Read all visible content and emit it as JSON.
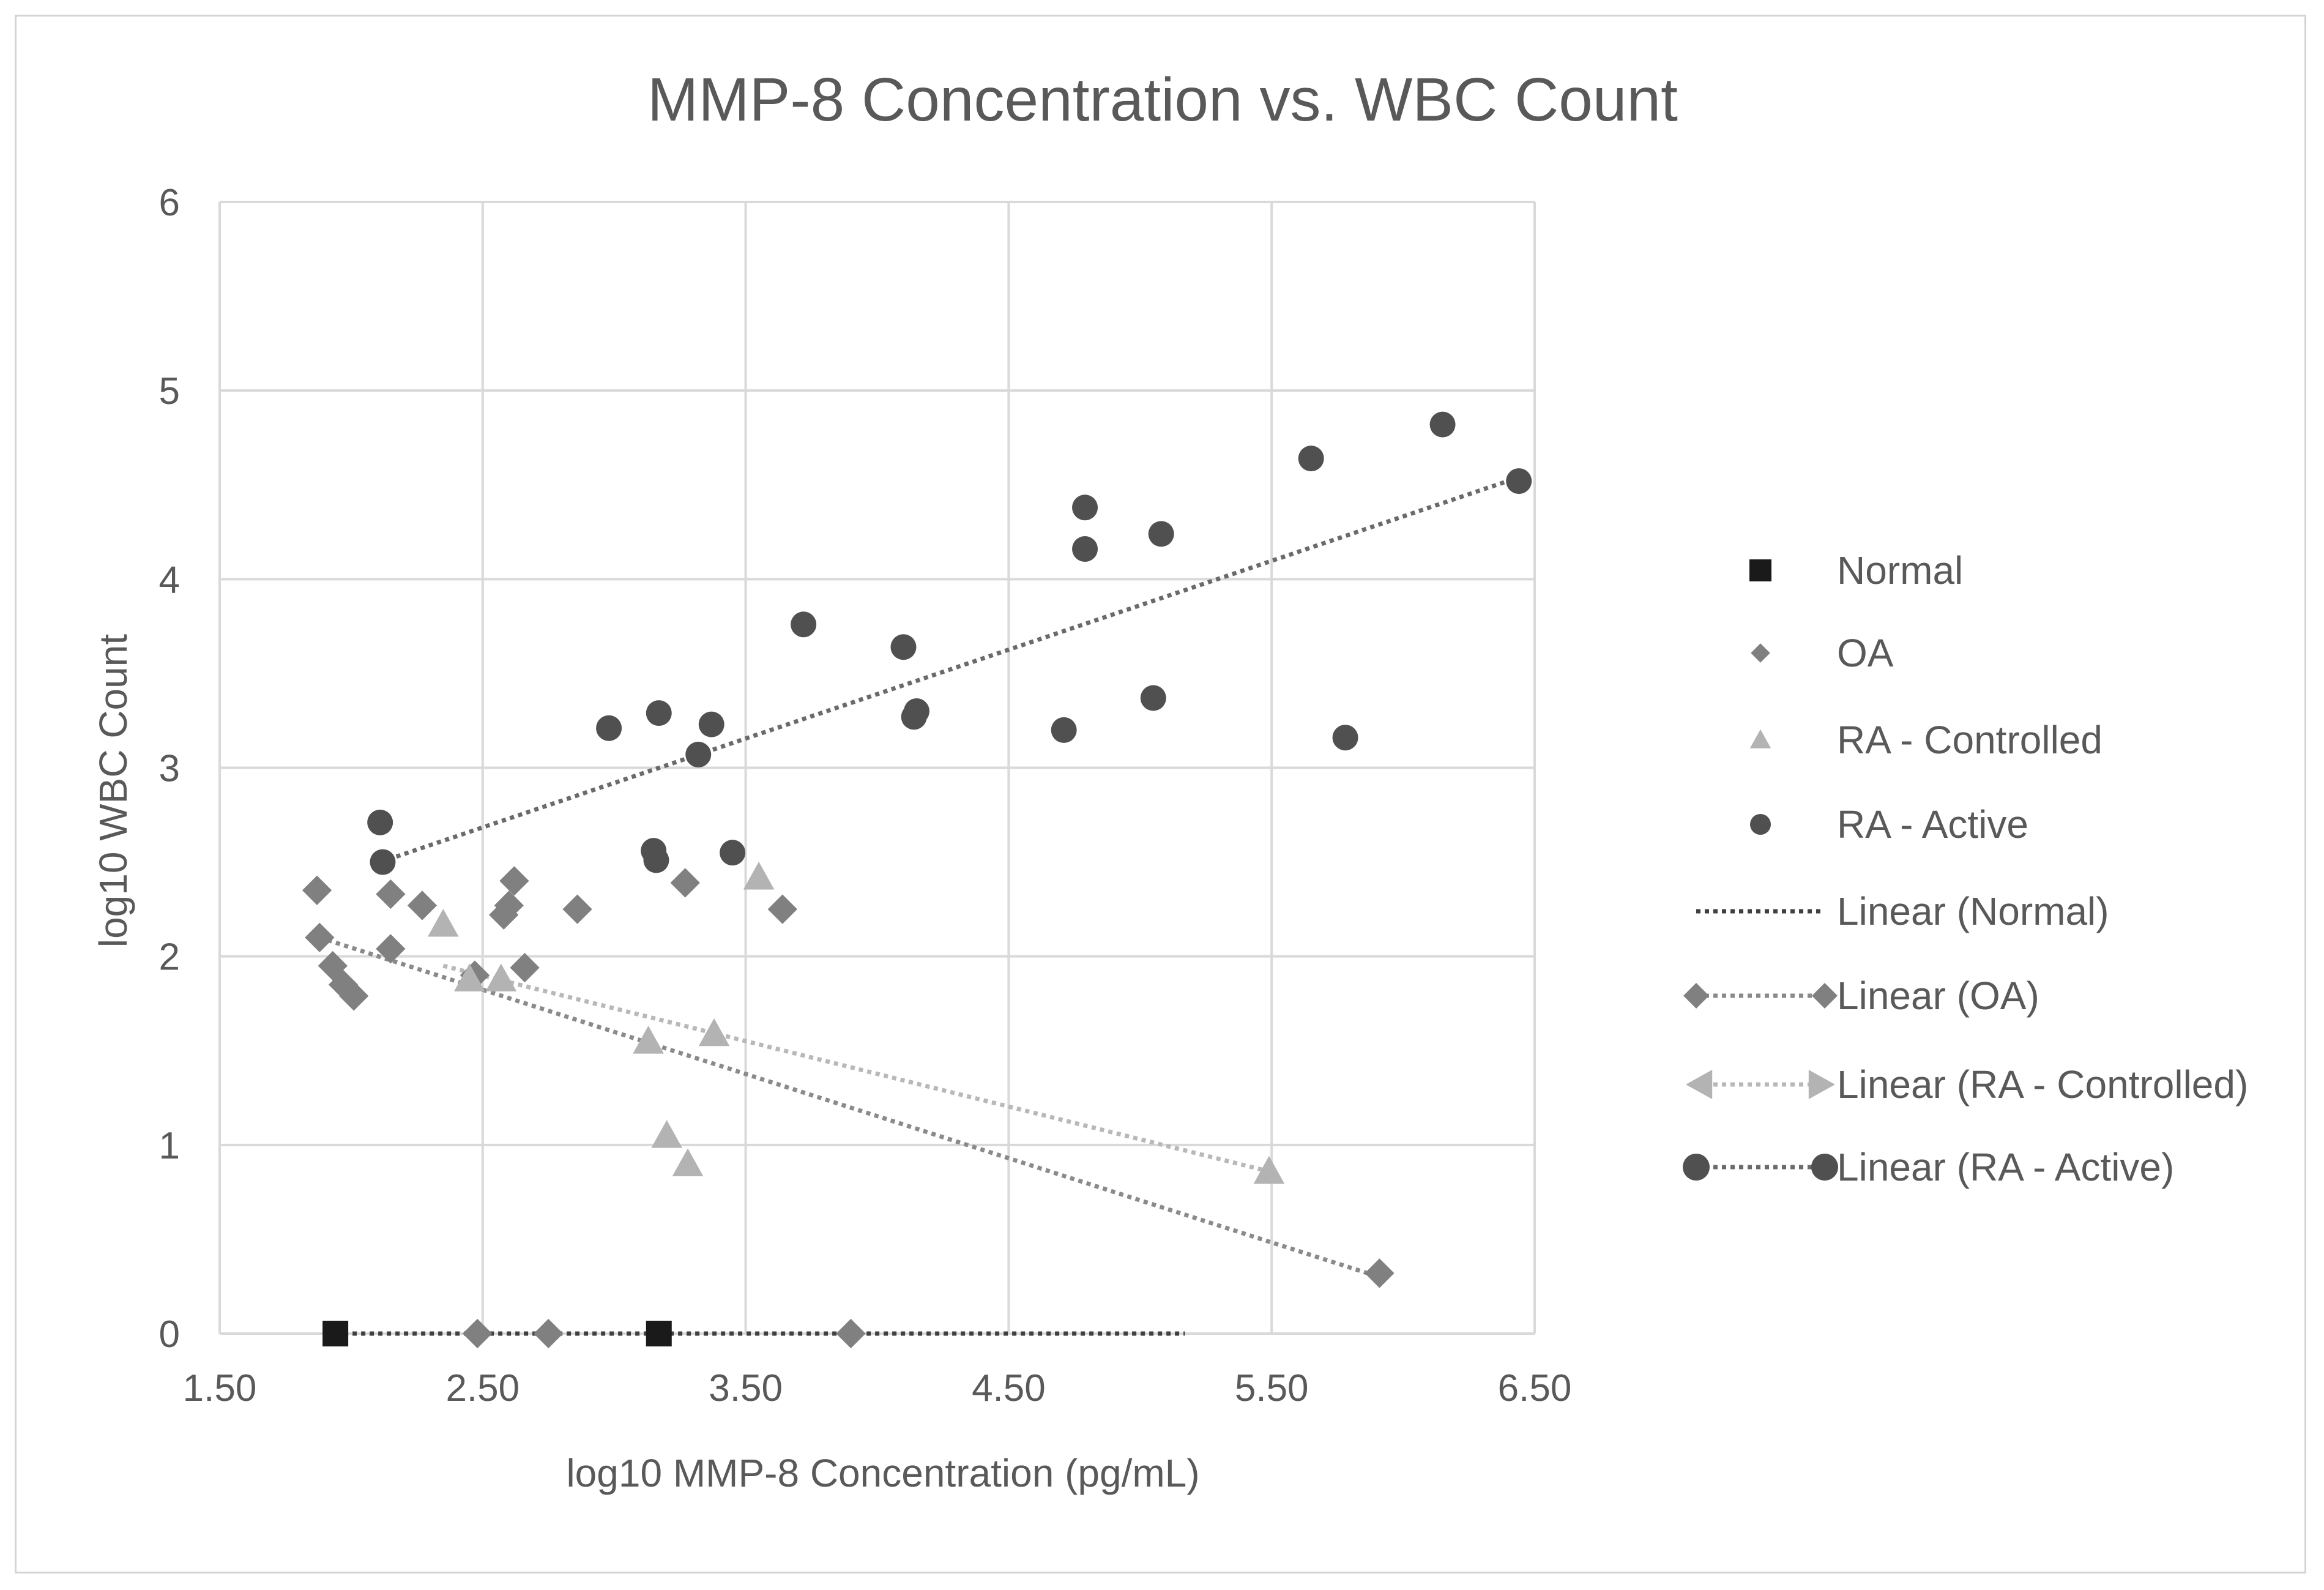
{
  "chart_data": {
    "type": "scatter",
    "title": "MMP-8 Concentration vs. WBC Count",
    "xlabel": "log10 MMP-8 Concentration (pg/mL)",
    "ylabel": "log10 WBC Count",
    "xlim": [
      1.5,
      6.5
    ],
    "ylim": [
      0,
      6
    ],
    "x_ticks": [
      "1.50",
      "2.50",
      "3.50",
      "4.50",
      "5.50",
      "6.50"
    ],
    "y_ticks": [
      "0",
      "1",
      "2",
      "3",
      "4",
      "5",
      "6"
    ],
    "grid": true,
    "legend_position": "right",
    "colors": {
      "normal": "#1a1a1a",
      "oa": "#808080",
      "ra_controlled": "#b3b3b3",
      "ra_active": "#505050",
      "grid": "#d9d9d9",
      "text": "#595959"
    },
    "series": [
      {
        "name": "Normal",
        "marker": "square",
        "points": [
          [
            1.94,
            0.0
          ],
          [
            3.17,
            0.0
          ]
        ]
      },
      {
        "name": "OA",
        "marker": "diamond",
        "points": [
          [
            1.87,
            2.35
          ],
          [
            1.88,
            2.1
          ],
          [
            1.93,
            1.95
          ],
          [
            1.97,
            1.85
          ],
          [
            2.01,
            1.79
          ],
          [
            2.15,
            2.33
          ],
          [
            2.15,
            2.04
          ],
          [
            2.27,
            2.27
          ],
          [
            2.47,
            1.9
          ],
          [
            2.58,
            2.22
          ],
          [
            2.6,
            2.27
          ],
          [
            2.62,
            2.4
          ],
          [
            2.66,
            1.94
          ],
          [
            2.86,
            2.25
          ],
          [
            3.27,
            2.39
          ],
          [
            3.64,
            2.25
          ],
          [
            2.48,
            0.0
          ],
          [
            2.75,
            0.0
          ],
          [
            3.9,
            0.0
          ],
          [
            5.91,
            0.32
          ]
        ]
      },
      {
        "name": "RA - Controlled",
        "marker": "triangle",
        "points": [
          [
            2.35,
            2.17
          ],
          [
            2.45,
            1.88
          ],
          [
            2.57,
            1.88
          ],
          [
            3.13,
            1.55
          ],
          [
            3.2,
            1.05
          ],
          [
            3.28,
            0.9
          ],
          [
            3.38,
            1.59
          ],
          [
            3.55,
            2.42
          ],
          [
            5.49,
            0.86
          ]
        ]
      },
      {
        "name": "RA - Active",
        "marker": "circle",
        "points": [
          [
            2.11,
            2.71
          ],
          [
            2.12,
            2.5
          ],
          [
            2.98,
            3.21
          ],
          [
            3.15,
            2.56
          ],
          [
            3.16,
            2.51
          ],
          [
            3.17,
            3.29
          ],
          [
            3.32,
            3.07
          ],
          [
            3.37,
            3.23
          ],
          [
            3.45,
            2.55
          ],
          [
            3.72,
            3.76
          ],
          [
            4.1,
            3.64
          ],
          [
            4.14,
            3.27
          ],
          [
            4.15,
            3.3
          ],
          [
            4.71,
            3.2
          ],
          [
            4.79,
            4.38
          ],
          [
            4.79,
            4.16
          ],
          [
            5.05,
            3.37
          ],
          [
            5.08,
            4.24
          ],
          [
            5.65,
            4.64
          ],
          [
            5.78,
            3.16
          ],
          [
            6.15,
            4.82
          ],
          [
            6.44,
            4.52
          ]
        ]
      }
    ],
    "trendlines": [
      {
        "name": "Linear (Normal)",
        "type": "linear",
        "series": "Normal",
        "from": [
          1.94,
          0.0
        ],
        "to": [
          5.17,
          0.0
        ]
      },
      {
        "name": "Linear (OA)",
        "type": "linear",
        "series": "OA",
        "from": [
          1.88,
          2.1
        ],
        "to": [
          5.91,
          0.3
        ]
      },
      {
        "name": "Linear (RA - Controlled)",
        "type": "linear",
        "series": "RA - Controlled",
        "from": [
          2.35,
          1.95
        ],
        "to": [
          5.49,
          0.86
        ]
      },
      {
        "name": "Linear (RA - Active)",
        "type": "linear",
        "series": "RA - Active",
        "from": [
          2.11,
          2.5
        ],
        "to": [
          6.44,
          4.54
        ]
      }
    ]
  }
}
